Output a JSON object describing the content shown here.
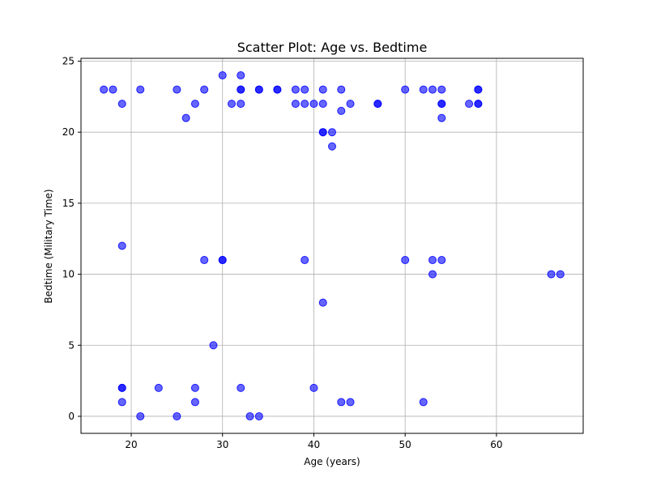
{
  "chart_data": {
    "type": "scatter",
    "title": "Scatter Plot: Age vs. Bedtime",
    "xlabel": "Age (years)",
    "ylabel": "Bedtime (Military Time)",
    "xlim": [
      14.5,
      69.5
    ],
    "ylim": [
      -1.2,
      25.2
    ],
    "xticks": [
      20,
      30,
      40,
      50,
      60
    ],
    "yticks": [
      0,
      5,
      10,
      15,
      20,
      25
    ],
    "grid": true,
    "point_color": "#0000ff",
    "point_alpha": 0.6,
    "points": [
      [
        17,
        23
      ],
      [
        18,
        23
      ],
      [
        19,
        22
      ],
      [
        21,
        23
      ],
      [
        25,
        23
      ],
      [
        26,
        21
      ],
      [
        27,
        22
      ],
      [
        28,
        23
      ],
      [
        30,
        24
      ],
      [
        31,
        22
      ],
      [
        32,
        22
      ],
      [
        32,
        23
      ],
      [
        32,
        23
      ],
      [
        32,
        24
      ],
      [
        34,
        23
      ],
      [
        34,
        23
      ],
      [
        36,
        23
      ],
      [
        36,
        23
      ],
      [
        38,
        22
      ],
      [
        38,
        23
      ],
      [
        39,
        22
      ],
      [
        39,
        23
      ],
      [
        40,
        22
      ],
      [
        41,
        22
      ],
      [
        41,
        23
      ],
      [
        41,
        20
      ],
      [
        41,
        20
      ],
      [
        42,
        20
      ],
      [
        42,
        19
      ],
      [
        43,
        21.5
      ],
      [
        43,
        23
      ],
      [
        44,
        22
      ],
      [
        47,
        22
      ],
      [
        47,
        22
      ],
      [
        50,
        23
      ],
      [
        52,
        23
      ],
      [
        53,
        23
      ],
      [
        54,
        23
      ],
      [
        54,
        22
      ],
      [
        54,
        22
      ],
      [
        54,
        21
      ],
      [
        57,
        22
      ],
      [
        58,
        22
      ],
      [
        58,
        22
      ],
      [
        58,
        23
      ],
      [
        58,
        23
      ],
      [
        19,
        12
      ],
      [
        28,
        11
      ],
      [
        30,
        11
      ],
      [
        30,
        11
      ],
      [
        39,
        11
      ],
      [
        41,
        8
      ],
      [
        50,
        11
      ],
      [
        53,
        11
      ],
      [
        53,
        10
      ],
      [
        54,
        11
      ],
      [
        66,
        10
      ],
      [
        67,
        10
      ],
      [
        29,
        5
      ],
      [
        19,
        2
      ],
      [
        19,
        2
      ],
      [
        19,
        1
      ],
      [
        21,
        0
      ],
      [
        23,
        2
      ],
      [
        25,
        0
      ],
      [
        27,
        2
      ],
      [
        27,
        1
      ],
      [
        32,
        2
      ],
      [
        33,
        0
      ],
      [
        34,
        0
      ],
      [
        40,
        2
      ],
      [
        43,
        1
      ],
      [
        44,
        1
      ],
      [
        52,
        1
      ]
    ]
  }
}
